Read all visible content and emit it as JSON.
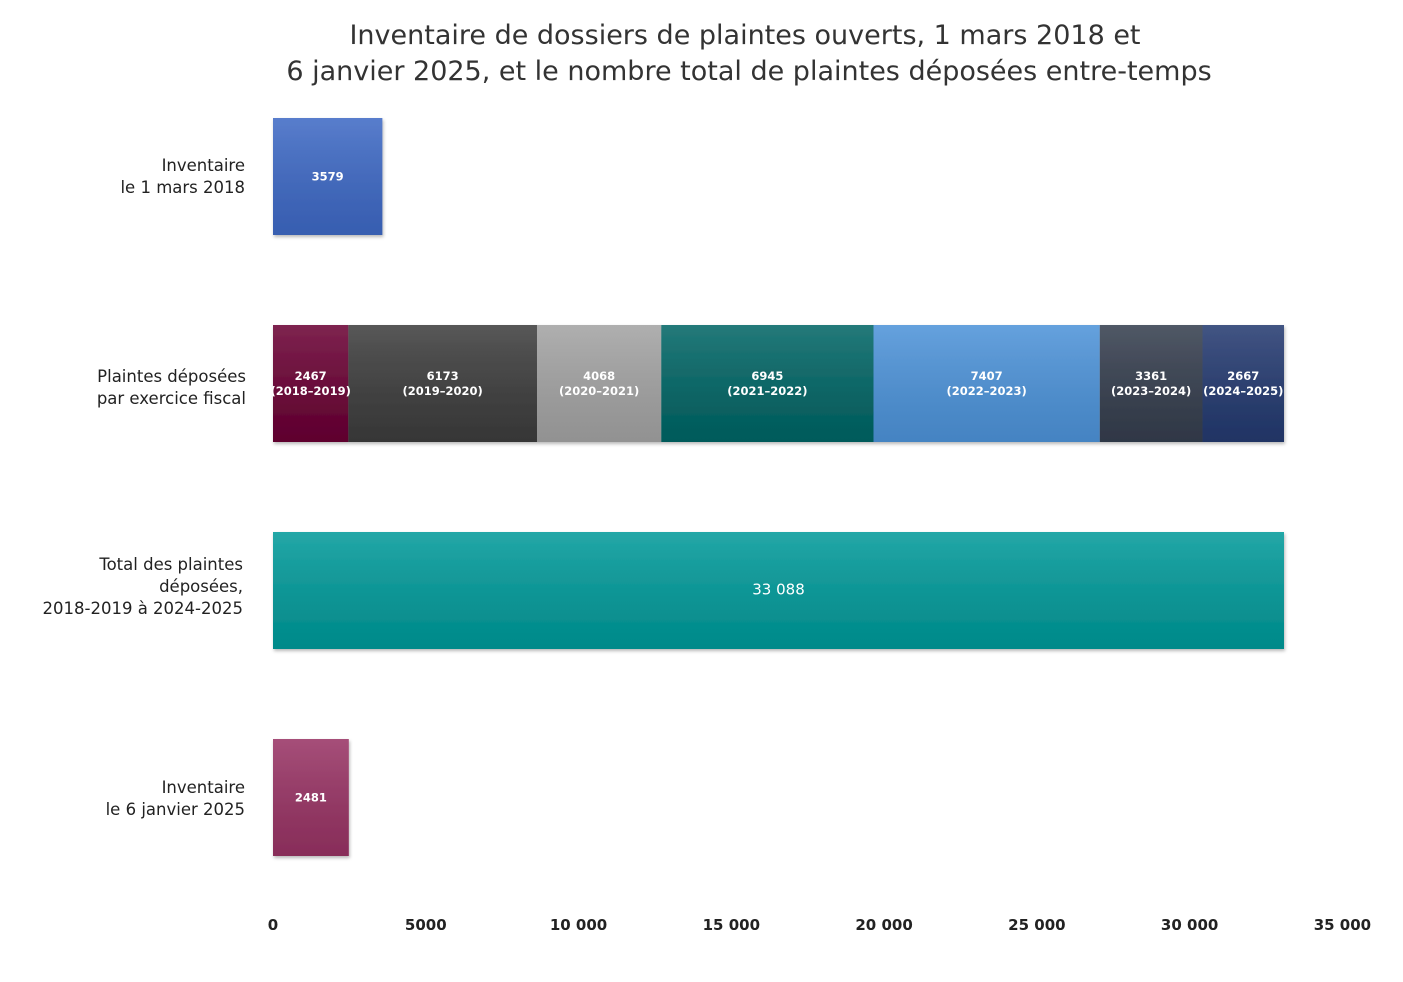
{
  "chart_data": {
    "type": "bar",
    "orientation": "horizontal",
    "stacked": true,
    "title": [
      "Inventaire de dossiers de plaintes ouverts, 1 mars 2018 et",
      "6 janvier 2025, et le nombre total de plaintes déposées entre-temps"
    ],
    "xlim": [
      0,
      35000
    ],
    "xticks": [
      0,
      5000,
      10000,
      15000,
      20000,
      25000,
      30000,
      35000
    ],
    "xtick_labels": [
      "0",
      "5000",
      "10 000",
      "15 000",
      "20 000",
      "25 000",
      "30 000",
      "35 000"
    ],
    "grid": false,
    "legend": "none",
    "categories": [
      {
        "key": "inv2018",
        "label": [
          "Inventaire",
          "le 1 mars 2018"
        ],
        "segments": [
          {
            "value": 3579,
            "label": [
              "3579"
            ],
            "color": "#3d68c4"
          }
        ]
      },
      {
        "key": "deposees",
        "label": [
          "Plaintes déposées",
          "par exercice fiscal"
        ],
        "segments": [
          {
            "value": 2467,
            "label": [
              "2467",
              "(2018–2019)"
            ],
            "color": "#690033"
          },
          {
            "value": 6173,
            "label": [
              "6173",
              "(2019–2020)"
            ],
            "color": "#3c3c3c"
          },
          {
            "value": 4068,
            "label": [
              "4068",
              "(2020–2021)"
            ],
            "color": "#a2a2a2"
          },
          {
            "value": 6945,
            "label": [
              "6945",
              "(2021–2022)"
            ],
            "color": "#006464"
          },
          {
            "value": 7407,
            "label": [
              "7407",
              "(2022–2023)"
            ],
            "color": "#4c92d8"
          },
          {
            "value": 3361,
            "label": [
              "3361",
              "(2023–2024)"
            ],
            "color": "#343d4d"
          },
          {
            "value": 2667,
            "label": [
              "2667",
              "(2024–2025)"
            ],
            "color": "#23396f"
          }
        ]
      },
      {
        "key": "total",
        "label": [
          "Total des plaintes",
          "déposées,",
          "2018-2019 à 2024-2025"
        ],
        "segments": [
          {
            "value": 33088,
            "label": [
              "33 088"
            ],
            "color": "#009999"
          }
        ]
      },
      {
        "key": "inv2025",
        "label": [
          "Inventaire",
          "le 6 janvier 2025"
        ],
        "segments": [
          {
            "value": 2481,
            "label": [
              "2481"
            ],
            "color": "#973263"
          }
        ]
      }
    ]
  }
}
